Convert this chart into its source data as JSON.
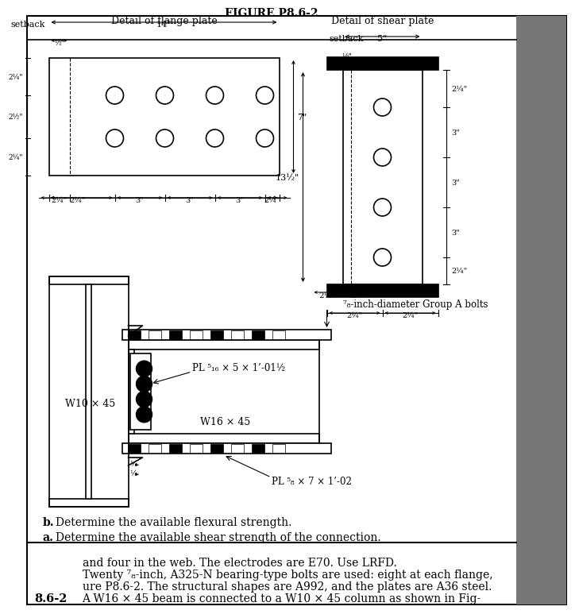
{
  "bg_color": "#ffffff",
  "line_color": "#000000",
  "gray_color": "#666666",
  "header_text1": "8.6-2",
  "header_text2": "A W16 × 45 beam is connected to a W10 × 45 column as shown in Fig-",
  "header_text3": "ure P8.6-2. The structural shapes are A992, and the plates are A36 steel.",
  "header_text4": "Twenty ⁷₈-inch, A325-N bearing-type bolts are used: eight at each flange,",
  "header_text5": "and four in the web. The electrodes are E70. Use LRFD.",
  "part_a": "a.",
  "part_a_text": "Determine the available shear strength of the connection.",
  "part_b": "b.",
  "part_b_text": "Determine the available flexural strength.",
  "label_PL_top": "PL ⁵₈ × 7 × 1’-02",
  "label_PL_web": "PL ⁵₁₆ × 5 × 1’-01½",
  "label_W10": "W10 × 45",
  "label_W16": "W16 × 45",
  "label_bolts": "⁷₈-inch-diameter Group A bolts",
  "detail_flange": "Detail of flange plate",
  "detail_shear": "Detail of shear plate",
  "fig_label": "FIGURE P8.6-2"
}
